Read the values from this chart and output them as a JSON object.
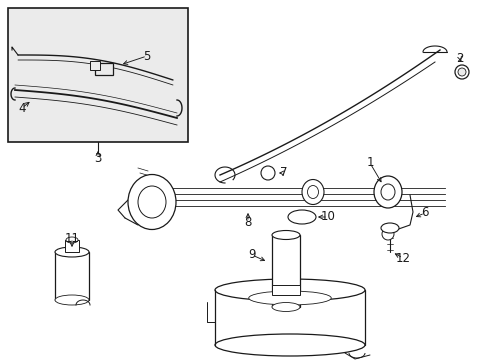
{
  "bg_color": "#ffffff",
  "inset_bg": "#ebebeb",
  "line_color": "#1a1a1a",
  "fig_width": 4.89,
  "fig_height": 3.6,
  "dpi": 100
}
